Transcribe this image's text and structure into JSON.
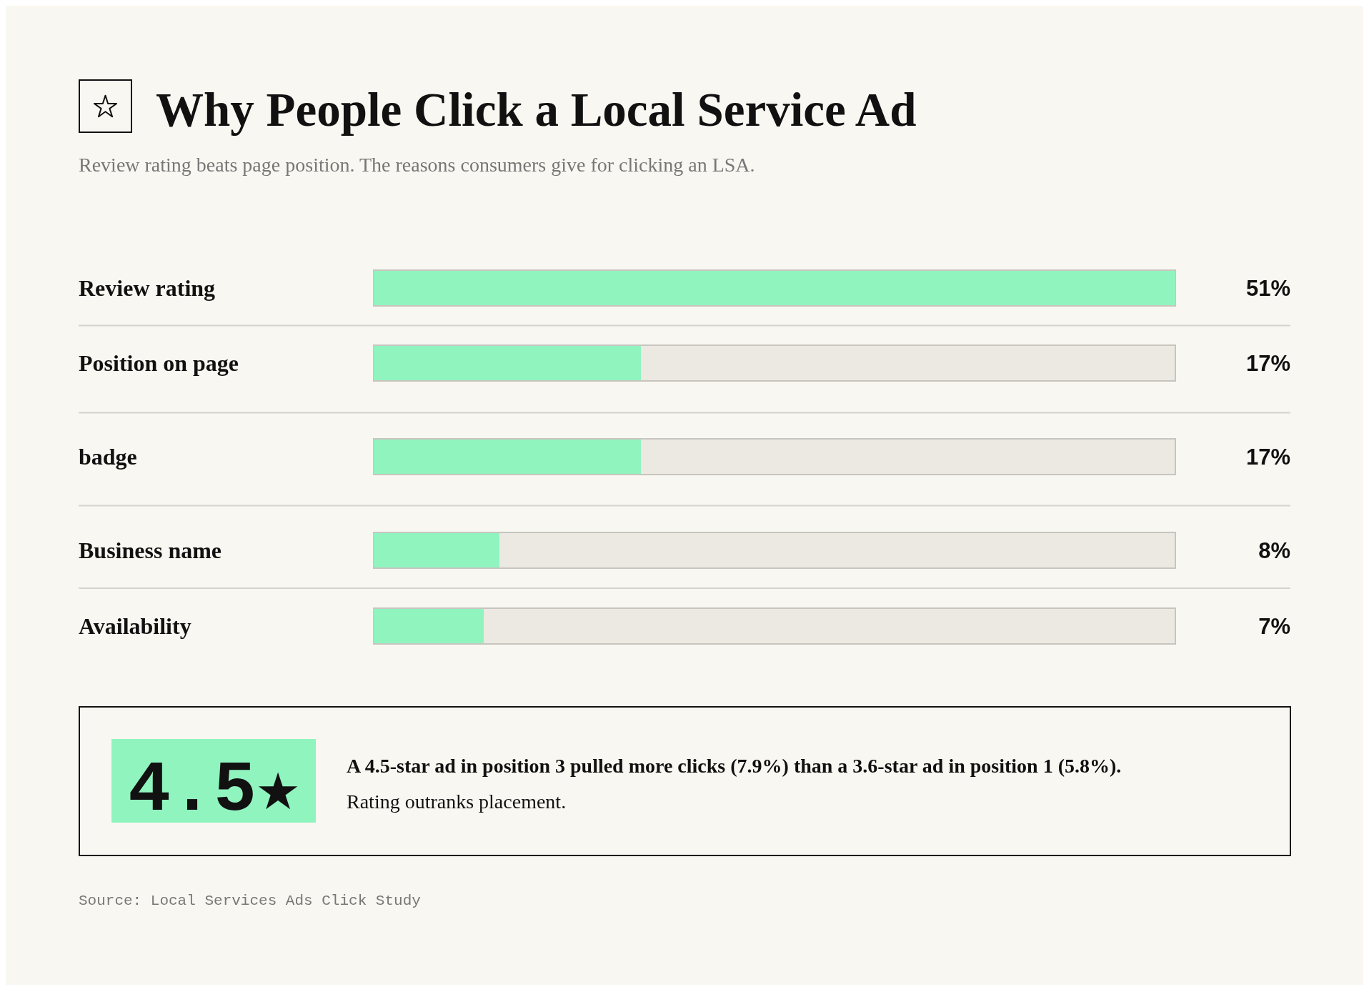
{
  "chart_data": {
    "type": "bar",
    "orientation": "horizontal",
    "title": "Why People Click a Local Service Ad",
    "subtitle": "Review rating beats page position. The reasons consumers give for clicking an LSA.",
    "categories": [
      "Review rating",
      "Position on page",
      "badge",
      "Business name",
      "Availability"
    ],
    "values": [
      51,
      17,
      17,
      8,
      7
    ],
    "value_labels": [
      "51%",
      "17%",
      "17%",
      "8%",
      "7%"
    ],
    "color": "#90f4bf",
    "xlim": [
      0,
      51
    ],
    "tick_labels": "y",
    "annotations": [
      "4.5★",
      "A 4.5-star ad in position 3 pulled more clicks (7.9%) than a 3.6-star ad in position 1 (5.8%). Rating outranks placement.",
      "Source: Local Services Ads Click Study"
    ]
  }
}
